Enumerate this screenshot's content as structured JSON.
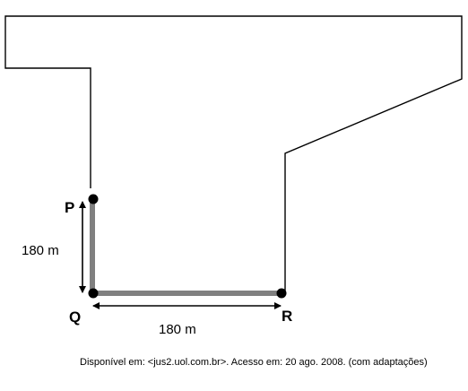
{
  "points": {
    "p": "P",
    "q": "Q",
    "r": "R"
  },
  "dimensions": {
    "vertical": "180 m",
    "horizontal": "180 m"
  },
  "source": "Disponível em: <jus2.uol.com.br>. Acesso em: 20 ago. 2008. (com adaptações)",
  "colors": {
    "outline": "#000000",
    "path": "#808080",
    "dot": "#000000"
  }
}
